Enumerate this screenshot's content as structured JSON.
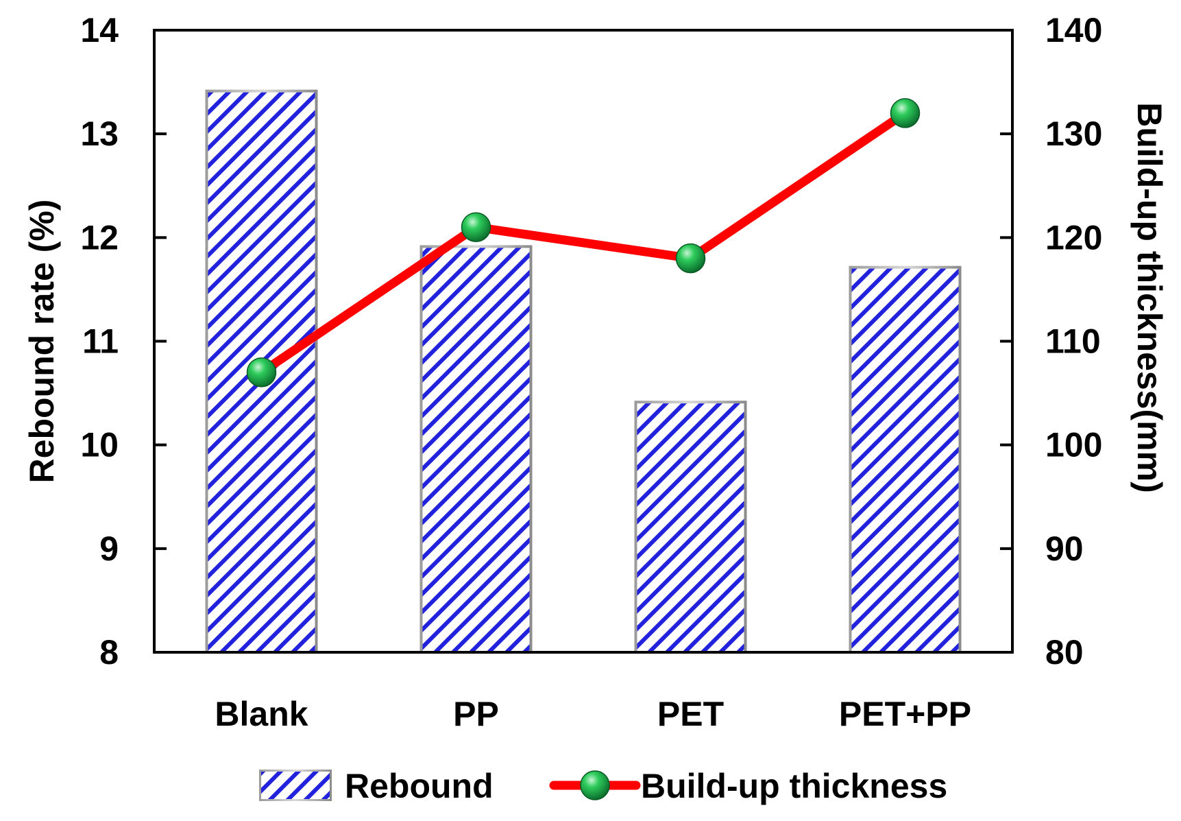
{
  "chart_data": {
    "type": "bar",
    "categories": [
      "Blank",
      "PP",
      "PET",
      "PET+PP"
    ],
    "series": [
      {
        "name": "Rebound",
        "type": "bar",
        "axis": "left",
        "values": [
          13.4,
          11.9,
          10.4,
          11.7
        ],
        "color": "#2222dd"
      },
      {
        "name": "Build-up thickness",
        "type": "line",
        "axis": "right",
        "values": [
          107,
          121,
          118,
          132
        ],
        "color": "#ff0000",
        "marker_color": "#1aa84a"
      }
    ],
    "ylabel": "Rebound rate (%)",
    "y2label": "Build-up thickness(mm)",
    "ylim": [
      8,
      14
    ],
    "y2lim": [
      80,
      140
    ],
    "yticks": [
      "8",
      "9",
      "10",
      "11",
      "12",
      "13",
      "14"
    ],
    "y2ticks": [
      "80",
      "90",
      "100",
      "110",
      "120",
      "130",
      "140"
    ],
    "grid": false,
    "legend_position": "bottom",
    "legend": [
      "Rebound",
      "Build-up thickness"
    ]
  }
}
